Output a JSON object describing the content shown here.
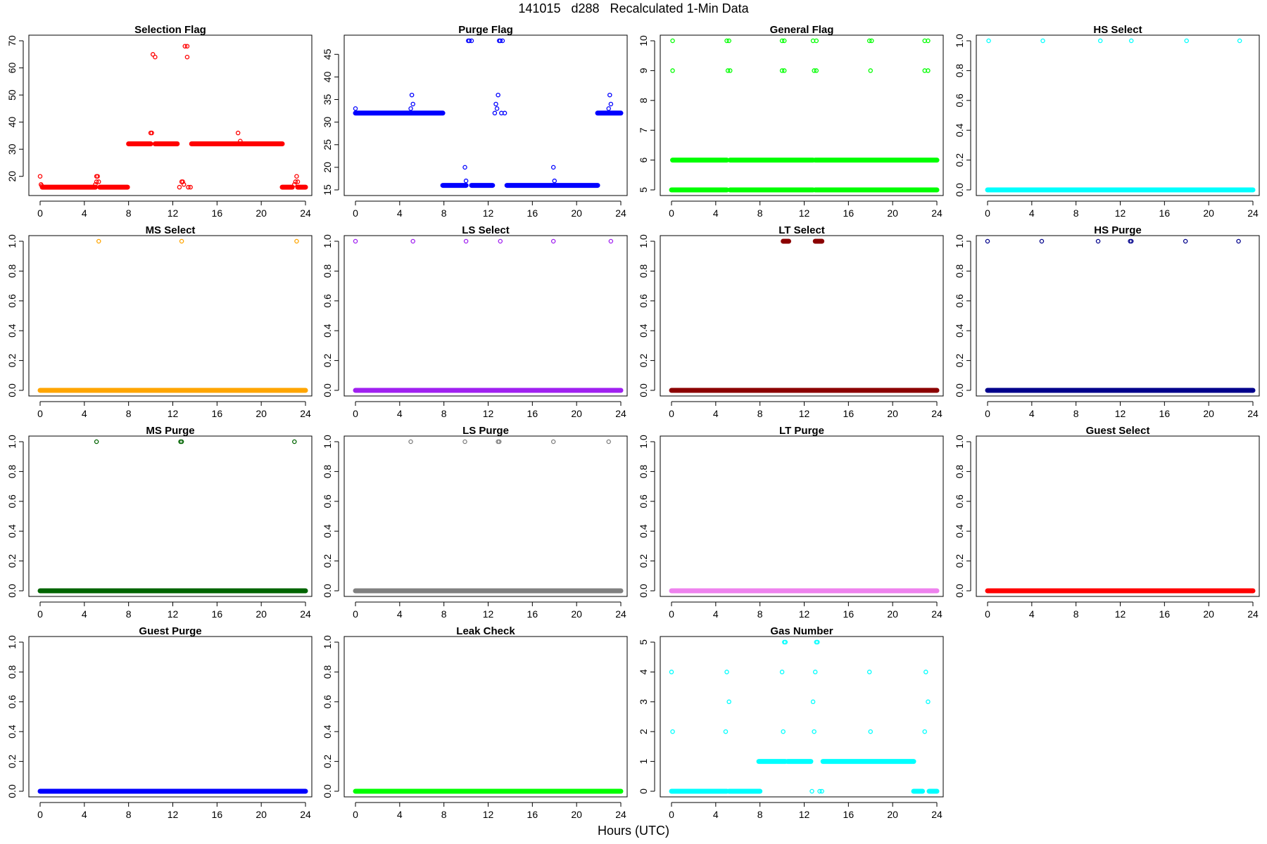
{
  "title": "141015   d288   Recalculated 1-Min Data",
  "xlabel": "Hours (UTC)",
  "chart_data": [
    {
      "type": "scatter",
      "title": "Selection Flag",
      "color": "#ff0000",
      "xlim": [
        0,
        24
      ],
      "ylim": [
        15,
        70
      ],
      "xticks": [
        0,
        4,
        8,
        12,
        16,
        20,
        24
      ],
      "yticks": [
        20,
        30,
        40,
        50,
        60,
        70
      ],
      "segments": [
        [
          0.2,
          5,
          16
        ],
        [
          5.4,
          7.9,
          16
        ],
        [
          8,
          10,
          32
        ],
        [
          10.4,
          12.4,
          32
        ],
        [
          13.7,
          21.9,
          32
        ],
        [
          21.9,
          22.8,
          16
        ],
        [
          23.3,
          24,
          16
        ]
      ],
      "points": [
        [
          0,
          20
        ],
        [
          0.08,
          17
        ],
        [
          0.15,
          16.5
        ],
        [
          5,
          17
        ],
        [
          5.1,
          18
        ],
        [
          5.1,
          20
        ],
        [
          5.2,
          20
        ],
        [
          5.3,
          18
        ],
        [
          10,
          36
        ],
        [
          10.1,
          36
        ],
        [
          10.2,
          65
        ],
        [
          10.4,
          64
        ],
        [
          12.6,
          16
        ],
        [
          12.8,
          18
        ],
        [
          12.9,
          18
        ],
        [
          13,
          17
        ],
        [
          13.1,
          68
        ],
        [
          13.3,
          68
        ],
        [
          13.3,
          64
        ],
        [
          13.4,
          16
        ],
        [
          13.6,
          16
        ],
        [
          17.9,
          36
        ],
        [
          18.1,
          33
        ],
        [
          22.8,
          16
        ],
        [
          23,
          17
        ],
        [
          23.1,
          18
        ],
        [
          23.2,
          20
        ],
        [
          23.3,
          18
        ]
      ]
    },
    {
      "type": "scatter",
      "title": "Purge Flag",
      "color": "#0000ff",
      "xlim": [
        0,
        24
      ],
      "ylim": [
        15,
        48
      ],
      "xticks": [
        0,
        4,
        8,
        12,
        16,
        20,
        24
      ],
      "yticks": [
        15,
        20,
        25,
        30,
        35,
        40,
        45
      ],
      "segments": [
        [
          0,
          7.9,
          32
        ],
        [
          7.9,
          10,
          16
        ],
        [
          10.5,
          12.4,
          16
        ],
        [
          13.7,
          21.9,
          16
        ],
        [
          21.9,
          24,
          32
        ]
      ],
      "points": [
        [
          0,
          33
        ],
        [
          5,
          33
        ],
        [
          5.1,
          36
        ],
        [
          5.2,
          34
        ],
        [
          9.9,
          20
        ],
        [
          10,
          17
        ],
        [
          10.2,
          48
        ],
        [
          10.3,
          48
        ],
        [
          10.5,
          48
        ],
        [
          12.6,
          32
        ],
        [
          12.7,
          34
        ],
        [
          12.8,
          33
        ],
        [
          12.9,
          36
        ],
        [
          13,
          48
        ],
        [
          13.1,
          48
        ],
        [
          13.3,
          48
        ],
        [
          13.2,
          32
        ],
        [
          13.5,
          32
        ],
        [
          17.9,
          20
        ],
        [
          18,
          17
        ],
        [
          22.9,
          33
        ],
        [
          23,
          36
        ],
        [
          23.1,
          34
        ]
      ]
    },
    {
      "type": "scatter",
      "title": "General Flag",
      "color": "#00ff00",
      "xlim": [
        0,
        24
      ],
      "ylim": [
        5,
        10
      ],
      "xticks": [
        0,
        4,
        8,
        12,
        16,
        20,
        24
      ],
      "yticks": [
        5,
        6,
        7,
        8,
        9,
        10
      ],
      "segments": [
        [
          0,
          5,
          5
        ],
        [
          5.3,
          12.8,
          5
        ],
        [
          13,
          24,
          5
        ],
        [
          0.1,
          5,
          6
        ],
        [
          5.3,
          12.8,
          6
        ],
        [
          13,
          24,
          6
        ]
      ],
      "points": [
        [
          0.1,
          10
        ],
        [
          0.1,
          9
        ],
        [
          5,
          10
        ],
        [
          5.2,
          10
        ],
        [
          5.1,
          9
        ],
        [
          5.3,
          9
        ],
        [
          10,
          10
        ],
        [
          10.2,
          10
        ],
        [
          10,
          9
        ],
        [
          10.2,
          9
        ],
        [
          12.8,
          10
        ],
        [
          13.1,
          10
        ],
        [
          12.9,
          9
        ],
        [
          13.1,
          9
        ],
        [
          17.9,
          10
        ],
        [
          18.1,
          10
        ],
        [
          18,
          9
        ],
        [
          22.9,
          10
        ],
        [
          23.2,
          10
        ],
        [
          22.9,
          9
        ],
        [
          23.2,
          9
        ],
        [
          12.7,
          6
        ],
        [
          12.7,
          5
        ]
      ]
    },
    {
      "type": "scatter",
      "title": "HS Select",
      "color": "#00ffff",
      "xlim": [
        0,
        24
      ],
      "ylim": [
        0,
        1
      ],
      "xticks": [
        0,
        4,
        8,
        12,
        16,
        20,
        24
      ],
      "yticks": [
        0,
        0.2,
        0.4,
        0.6,
        0.8,
        1
      ],
      "segments": [
        [
          0,
          24,
          0
        ]
      ],
      "points": [
        [
          0.1,
          1
        ],
        [
          5,
          1
        ],
        [
          10.2,
          1
        ],
        [
          13,
          1
        ],
        [
          18,
          1
        ],
        [
          22.8,
          1
        ]
      ]
    },
    {
      "type": "scatter",
      "title": "MS Select",
      "color": "#ffa500",
      "xlim": [
        0,
        24
      ],
      "ylim": [
        0,
        1
      ],
      "xticks": [
        0,
        4,
        8,
        12,
        16,
        20,
        24
      ],
      "yticks": [
        0,
        0.2,
        0.4,
        0.6,
        0.8,
        1
      ],
      "segments": [
        [
          0,
          24,
          0
        ]
      ],
      "points": [
        [
          5.3,
          1
        ],
        [
          12.8,
          1
        ],
        [
          23.2,
          1
        ]
      ]
    },
    {
      "type": "scatter",
      "title": "LS Select",
      "color": "#a020f0",
      "xlim": [
        0,
        24
      ],
      "ylim": [
        0,
        1
      ],
      "xticks": [
        0,
        4,
        8,
        12,
        16,
        20,
        24
      ],
      "yticks": [
        0,
        0.2,
        0.4,
        0.6,
        0.8,
        1
      ],
      "segments": [
        [
          0,
          24,
          0
        ]
      ],
      "points": [
        [
          0,
          1
        ],
        [
          5.2,
          1
        ],
        [
          10,
          1
        ],
        [
          13.1,
          1
        ],
        [
          17.9,
          1
        ],
        [
          23.1,
          1
        ]
      ]
    },
    {
      "type": "scatter",
      "title": "LT Select",
      "color": "#8b0000",
      "xlim": [
        0,
        24
      ],
      "ylim": [
        0,
        1
      ],
      "xticks": [
        0,
        4,
        8,
        12,
        16,
        20,
        24
      ],
      "yticks": [
        0,
        0.2,
        0.4,
        0.6,
        0.8,
        1
      ],
      "segments": [
        [
          0,
          24,
          0
        ],
        [
          10.1,
          10.6,
          1
        ],
        [
          13.0,
          13.6,
          1
        ]
      ],
      "points": []
    },
    {
      "type": "scatter",
      "title": "HS Purge",
      "color": "#00008b",
      "xlim": [
        0,
        24
      ],
      "ylim": [
        0,
        1
      ],
      "xticks": [
        0,
        4,
        8,
        12,
        16,
        20,
        24
      ],
      "yticks": [
        0,
        0.2,
        0.4,
        0.6,
        0.8,
        1
      ],
      "segments": [
        [
          0,
          24,
          0
        ]
      ],
      "points": [
        [
          0,
          1
        ],
        [
          4.9,
          1
        ],
        [
          10,
          1
        ],
        [
          12.9,
          1
        ],
        [
          13,
          1
        ],
        [
          17.9,
          1
        ],
        [
          22.7,
          1
        ]
      ]
    },
    {
      "type": "scatter",
      "title": "MS Purge",
      "color": "#006400",
      "xlim": [
        0,
        24
      ],
      "ylim": [
        0,
        1
      ],
      "xticks": [
        0,
        4,
        8,
        12,
        16,
        20,
        24
      ],
      "yticks": [
        0,
        0.2,
        0.4,
        0.6,
        0.8,
        1
      ],
      "segments": [
        [
          0,
          24,
          0
        ]
      ],
      "points": [
        [
          5.1,
          1
        ],
        [
          12.7,
          1
        ],
        [
          12.8,
          1
        ],
        [
          23,
          1
        ]
      ]
    },
    {
      "type": "scatter",
      "title": "LS Purge",
      "color": "#808080",
      "xlim": [
        0,
        24
      ],
      "ylim": [
        0,
        1
      ],
      "xticks": [
        0,
        4,
        8,
        12,
        16,
        20,
        24
      ],
      "yticks": [
        0,
        0.2,
        0.4,
        0.6,
        0.8,
        1
      ],
      "segments": [
        [
          0,
          24,
          0
        ]
      ],
      "points": [
        [
          5,
          1
        ],
        [
          9.9,
          1
        ],
        [
          12.9,
          1
        ],
        [
          13,
          1
        ],
        [
          17.9,
          1
        ],
        [
          22.9,
          1
        ]
      ]
    },
    {
      "type": "scatter",
      "title": "LT Purge",
      "color": "#ee82ee",
      "xlim": [
        0,
        24
      ],
      "ylim": [
        0,
        1
      ],
      "xticks": [
        0,
        4,
        8,
        12,
        16,
        20,
        24
      ],
      "yticks": [
        0,
        0.2,
        0.4,
        0.6,
        0.8,
        1
      ],
      "segments": [
        [
          0,
          24,
          0
        ]
      ],
      "points": []
    },
    {
      "type": "scatter",
      "title": "Guest Select",
      "color": "#ff0000",
      "xlim": [
        0,
        24
      ],
      "ylim": [
        0,
        1
      ],
      "xticks": [
        0,
        4,
        8,
        12,
        16,
        20,
        24
      ],
      "yticks": [
        0,
        0.2,
        0.4,
        0.6,
        0.8,
        1
      ],
      "segments": [
        [
          0,
          24,
          0
        ]
      ],
      "points": []
    },
    {
      "type": "scatter",
      "title": "Guest Purge",
      "color": "#0000ff",
      "xlim": [
        0,
        24
      ],
      "ylim": [
        0,
        1
      ],
      "xticks": [
        0,
        4,
        8,
        12,
        16,
        20,
        24
      ],
      "yticks": [
        0,
        0.2,
        0.4,
        0.6,
        0.8,
        1
      ],
      "segments": [
        [
          0,
          24,
          0
        ]
      ],
      "points": []
    },
    {
      "type": "scatter",
      "title": "Leak Check",
      "color": "#00ff00",
      "xlim": [
        0,
        24
      ],
      "ylim": [
        0,
        1
      ],
      "xticks": [
        0,
        4,
        8,
        12,
        16,
        20,
        24
      ],
      "yticks": [
        0,
        0.2,
        0.4,
        0.6,
        0.8,
        1
      ],
      "segments": [
        [
          0,
          24,
          0
        ]
      ],
      "points": []
    },
    {
      "type": "scatter",
      "title": "Gas Number",
      "color": "#00ffff",
      "xlim": [
        0,
        24
      ],
      "ylim": [
        0,
        5
      ],
      "xticks": [
        0,
        4,
        8,
        12,
        16,
        20,
        24
      ],
      "yticks": [
        0,
        1,
        2,
        3,
        4,
        5
      ],
      "segments": [
        [
          0,
          5,
          0
        ],
        [
          5.2,
          8,
          0
        ],
        [
          7.9,
          10.3,
          1
        ],
        [
          10.5,
          12.6,
          1
        ],
        [
          13.7,
          21.9,
          1
        ],
        [
          21.9,
          22.7,
          0
        ],
        [
          23.3,
          24,
          0
        ]
      ],
      "points": [
        [
          0,
          4
        ],
        [
          0.1,
          2
        ],
        [
          5,
          4
        ],
        [
          4.9,
          2
        ],
        [
          5.2,
          3
        ],
        [
          10,
          4
        ],
        [
          10.2,
          5
        ],
        [
          10.3,
          5
        ],
        [
          10.1,
          2
        ],
        [
          12.7,
          0
        ],
        [
          12.8,
          3
        ],
        [
          12.9,
          2
        ],
        [
          13,
          4
        ],
        [
          13.1,
          5
        ],
        [
          13.2,
          5
        ],
        [
          13.4,
          0
        ],
        [
          13.6,
          0
        ],
        [
          17.9,
          4
        ],
        [
          18,
          2
        ],
        [
          22.9,
          2
        ],
        [
          23,
          4
        ],
        [
          23.2,
          3
        ]
      ]
    }
  ]
}
